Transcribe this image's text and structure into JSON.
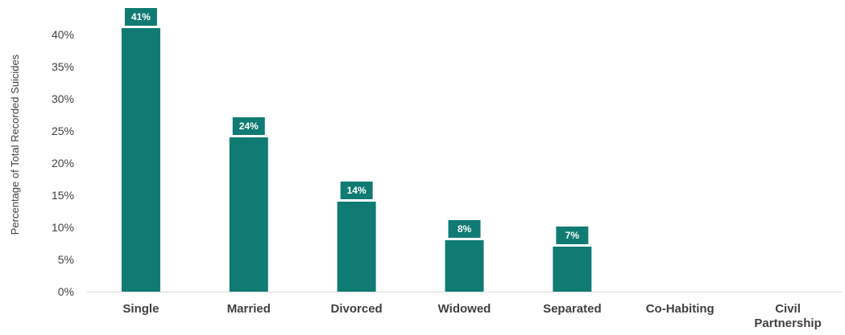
{
  "chart_data": {
    "type": "bar",
    "title": "",
    "xlabel": "",
    "ylabel": "Percentage of Total Recorded Suicides",
    "categories": [
      [
        "Single"
      ],
      [
        "Married"
      ],
      [
        "Divorced"
      ],
      [
        "Widowed"
      ],
      [
        "Separated"
      ],
      [
        "Co-Habiting"
      ],
      [
        "Civil",
        "Partnership"
      ]
    ],
    "values": [
      41,
      24,
      14,
      8,
      7,
      null,
      null
    ],
    "data_labels": [
      "41%",
      "24%",
      "14%",
      "8%",
      "7%",
      "",
      ""
    ],
    "ylim": [
      0,
      40
    ],
    "yticks": [
      0,
      5,
      10,
      15,
      20,
      25,
      30,
      35,
      40
    ],
    "ytick_labels": [
      "0%",
      "5%",
      "10%",
      "15%",
      "20%",
      "25%",
      "30%",
      "35%",
      "40%"
    ],
    "grid": false,
    "legend": "none",
    "bar_color": "#0f7b73",
    "label_box_color": "#0f7b73",
    "axis_color": "#d9d9d9"
  }
}
